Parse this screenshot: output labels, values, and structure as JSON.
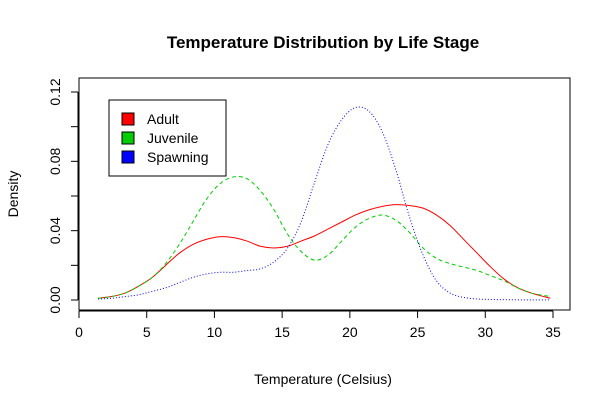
{
  "chart_data": {
    "type": "line",
    "title": "Temperature Distribution by Life Stage",
    "xlabel": "Temperature (Celsius)",
    "ylabel": "Density",
    "xlim": [
      0,
      35
    ],
    "ylim": [
      0,
      0.12
    ],
    "x_ticks": [
      0,
      5,
      10,
      15,
      20,
      25,
      30,
      35
    ],
    "y_ticks": [
      0.0,
      0.04,
      0.08,
      0.12
    ],
    "x_tick_labels": [
      "0",
      "5",
      "10",
      "15",
      "20",
      "25",
      "30",
      "35"
    ],
    "y_tick_labels": [
      "0.00",
      "0.04",
      "0.08",
      "0.12"
    ],
    "grid": false,
    "legend_position": "top-left",
    "series": [
      {
        "name": "Adult",
        "color": "#ff0000",
        "style": "solid",
        "x": [
          1.4,
          2.4,
          3.4,
          4.4,
          5.4,
          6.4,
          7.4,
          8.4,
          9.4,
          10.4,
          11.4,
          12.4,
          13.4,
          14.4,
          15.4,
          16.4,
          17.4,
          18.4,
          19.4,
          20.4,
          21.4,
          22.4,
          23.4,
          24.4,
          25.4,
          26.4,
          27.4,
          28.4,
          29.4,
          30.4,
          31.4,
          32.4,
          33.4,
          34.8
        ],
        "y": [
          0.001,
          0.002,
          0.004,
          0.008,
          0.013,
          0.02,
          0.027,
          0.032,
          0.035,
          0.0365,
          0.036,
          0.034,
          0.031,
          0.03,
          0.031,
          0.034,
          0.037,
          0.041,
          0.045,
          0.049,
          0.052,
          0.054,
          0.055,
          0.0545,
          0.053,
          0.049,
          0.043,
          0.035,
          0.027,
          0.019,
          0.012,
          0.007,
          0.004,
          0.001
        ]
      },
      {
        "name": "Juvenile",
        "color": "#00cc00",
        "style": "dashed",
        "x": [
          1.4,
          2.4,
          3.4,
          4.4,
          5.4,
          6.4,
          7.4,
          8.4,
          9.4,
          10.4,
          11.4,
          12.4,
          13.4,
          14.4,
          15.4,
          16.4,
          17.4,
          18.4,
          19.4,
          20.4,
          21.4,
          22.4,
          23.4,
          24.4,
          25.4,
          26.4,
          27.4,
          28.4,
          29.4,
          30.4,
          31.4,
          32.4,
          33.4,
          34.8
        ],
        "y": [
          0.001,
          0.002,
          0.004,
          0.008,
          0.013,
          0.021,
          0.032,
          0.045,
          0.058,
          0.067,
          0.071,
          0.07,
          0.063,
          0.052,
          0.038,
          0.028,
          0.023,
          0.026,
          0.034,
          0.042,
          0.047,
          0.049,
          0.046,
          0.039,
          0.03,
          0.024,
          0.021,
          0.019,
          0.017,
          0.014,
          0.011,
          0.007,
          0.004,
          0.002
        ]
      },
      {
        "name": "Spawning",
        "color": "#0000ff",
        "style": "dotted",
        "x": [
          1.4,
          2.4,
          3.4,
          4.4,
          5.4,
          6.4,
          7.4,
          8.4,
          9.4,
          10.4,
          11.4,
          12.4,
          13.4,
          14.4,
          15.4,
          16.4,
          17.4,
          18.4,
          19.4,
          20.4,
          21.4,
          22.4,
          23.4,
          24.4,
          25.4,
          26.4,
          27.4,
          28.4,
          29.4,
          30.4,
          31.4,
          32.4,
          33.4,
          34.8
        ],
        "y": [
          0.0005,
          0.001,
          0.002,
          0.003,
          0.005,
          0.007,
          0.01,
          0.013,
          0.015,
          0.016,
          0.016,
          0.017,
          0.018,
          0.022,
          0.03,
          0.045,
          0.068,
          0.09,
          0.104,
          0.111,
          0.109,
          0.097,
          0.075,
          0.048,
          0.026,
          0.011,
          0.004,
          0.0015,
          0.0006,
          0.0003,
          0.0002,
          0.0001,
          0.0001,
          0.0001
        ]
      }
    ]
  }
}
